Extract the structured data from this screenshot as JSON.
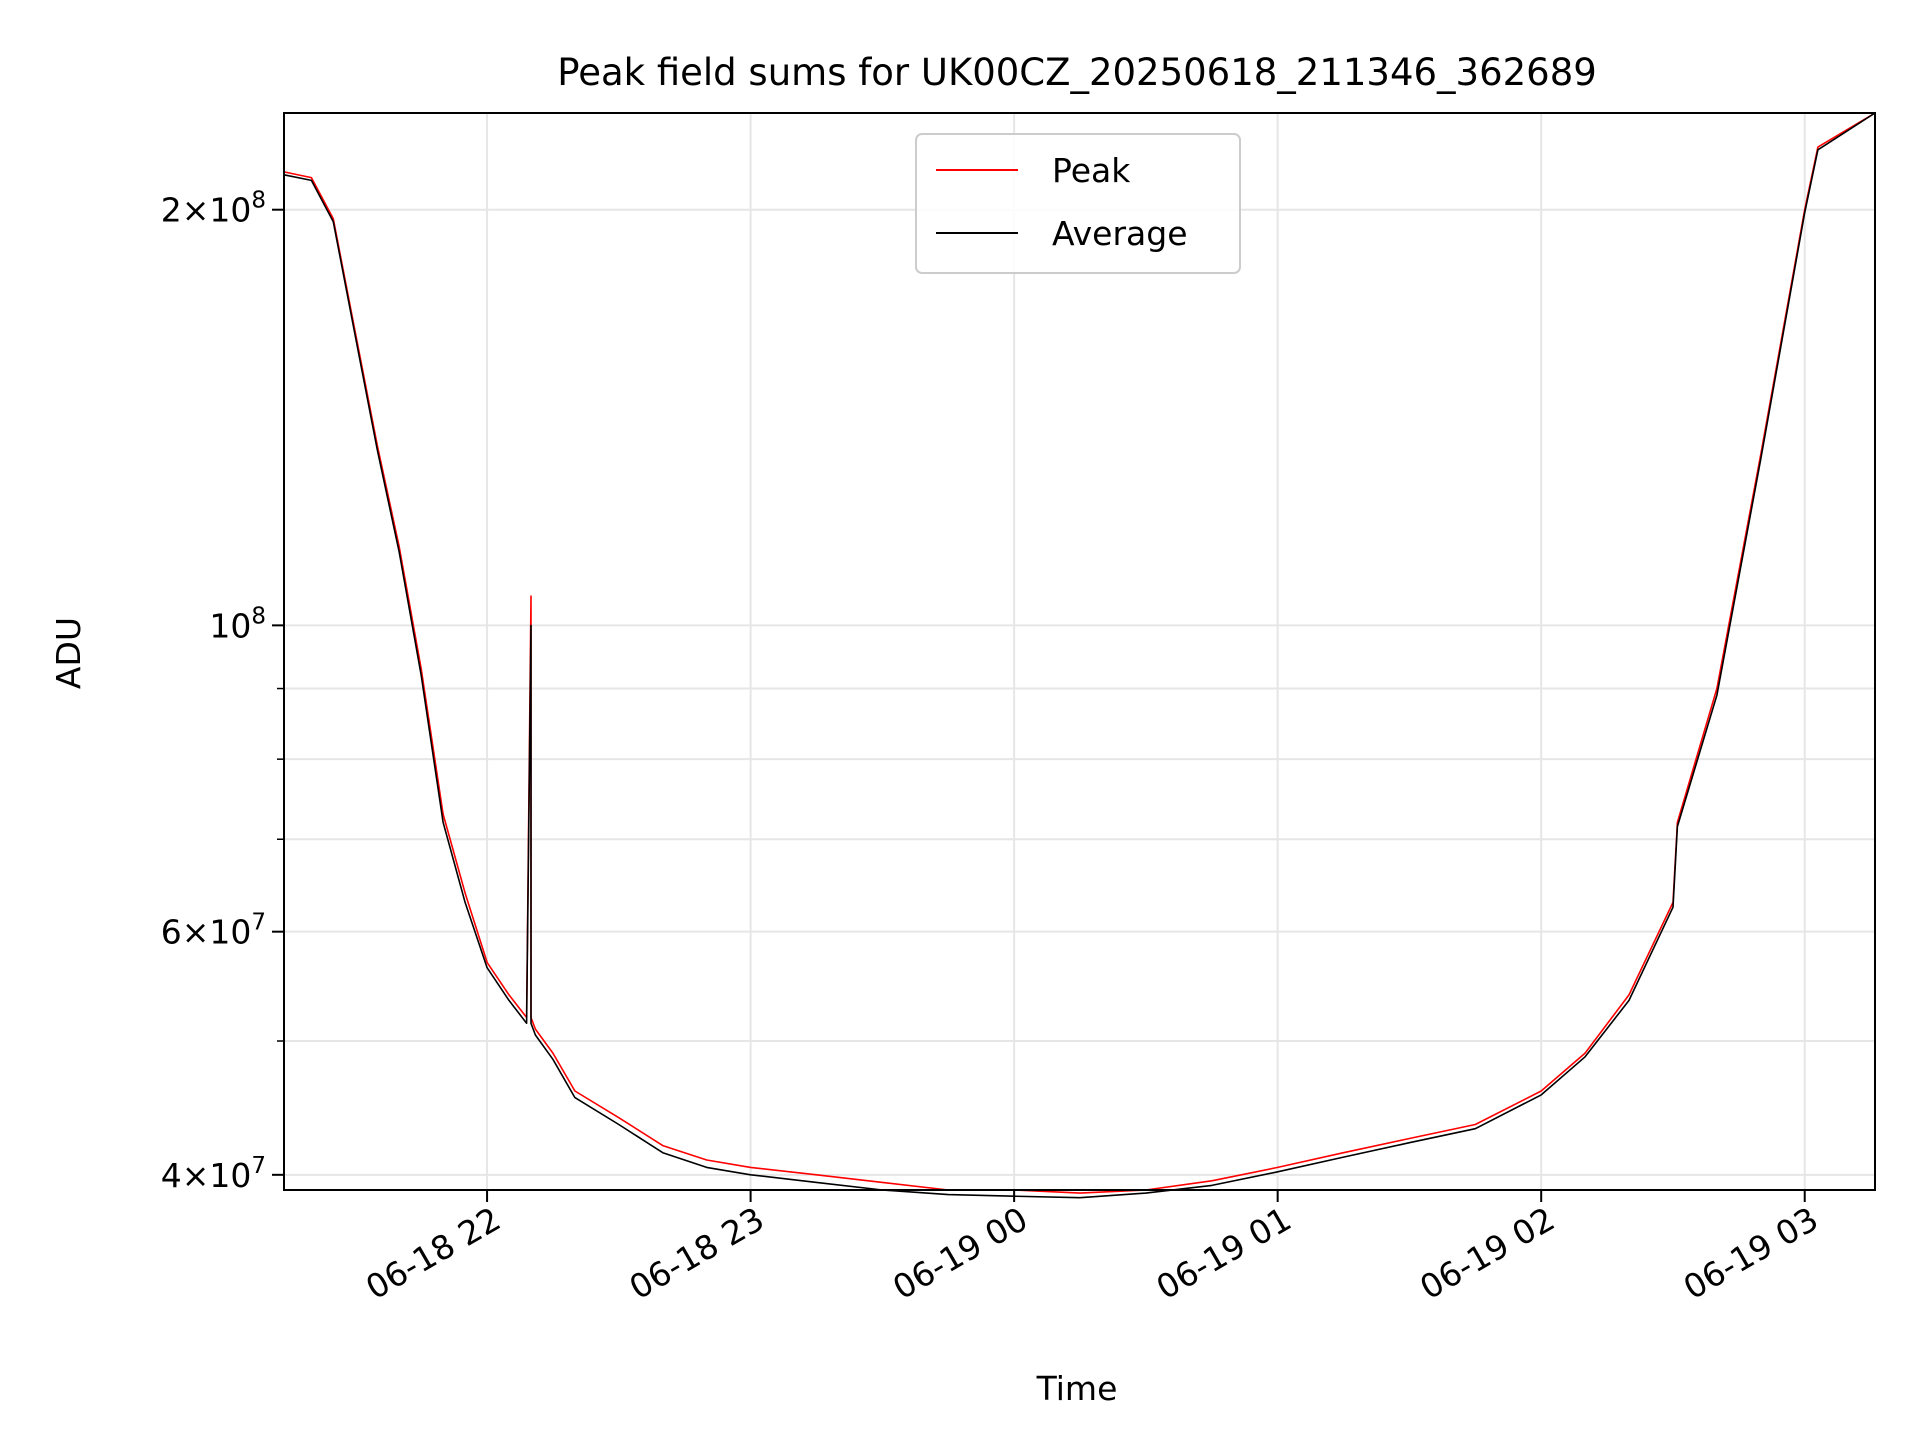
{
  "chart_data": {
    "type": "line",
    "title": "Peak field sums for UK00CZ_20250618_211346_362689",
    "xlabel": "Time",
    "ylabel": "ADU",
    "x_scale": "time",
    "y_scale": "log",
    "xlim": [
      "2025-06-18 21:13:46",
      "2025-06-19 03:16:00"
    ],
    "ylim": [
      39000000,
      235000000
    ],
    "grid": true,
    "legend_position": "top-center",
    "x_ticks": [
      {
        "label": "06-18 22",
        "value": "2025-06-18 22:00"
      },
      {
        "label": "06-18 23",
        "value": "2025-06-18 23:00"
      },
      {
        "label": "06-19 00",
        "value": "2025-06-19 00:00"
      },
      {
        "label": "06-19 01",
        "value": "2025-06-19 01:00"
      },
      {
        "label": "06-19 02",
        "value": "2025-06-19 02:00"
      },
      {
        "label": "06-19 03",
        "value": "2025-06-19 03:00"
      }
    ],
    "y_major_ticks": [
      {
        "value": 40000000,
        "mant": "4",
        "exp": "7"
      },
      {
        "value": 60000000,
        "mant": "6",
        "exp": "7"
      },
      {
        "value": 100000000,
        "mant": "",
        "exp": "8"
      },
      {
        "value": 200000000,
        "mant": "2",
        "exp": "8"
      }
    ],
    "y_minor_ticks": [
      50000000,
      70000000,
      80000000,
      90000000
    ],
    "series": [
      {
        "name": "Peak",
        "color": "#ff0000",
        "x": [
          "2025-06-18 21:13:46",
          "2025-06-18 21:20",
          "2025-06-18 21:25",
          "2025-06-18 21:30",
          "2025-06-18 21:35",
          "2025-06-18 21:40",
          "2025-06-18 21:45",
          "2025-06-18 21:50",
          "2025-06-18 21:55",
          "2025-06-18 22:00",
          "2025-06-18 22:05",
          "2025-06-18 22:09",
          "2025-06-18 22:10",
          "2025-06-18 22:10",
          "2025-06-18 22:11",
          "2025-06-18 22:15",
          "2025-06-18 22:20",
          "2025-06-18 22:30",
          "2025-06-18 22:40",
          "2025-06-18 22:50",
          "2025-06-18 23:00",
          "2025-06-18 23:15",
          "2025-06-18 23:30",
          "2025-06-18 23:45",
          "2025-06-19 00:00",
          "2025-06-19 00:15",
          "2025-06-19 00:30",
          "2025-06-19 00:45",
          "2025-06-19 01:00",
          "2025-06-19 01:15",
          "2025-06-19 01:30",
          "2025-06-19 01:45",
          "2025-06-19 02:00",
          "2025-06-19 02:10",
          "2025-06-19 02:20",
          "2025-06-19 02:30",
          "2025-06-19 02:31",
          "2025-06-19 02:40",
          "2025-06-19 02:50",
          "2025-06-19 03:00",
          "2025-06-19 03:03",
          "2025-06-19 03:16"
        ],
        "values": [
          213000000,
          211000000,
          197000000,
          163000000,
          135000000,
          114000000,
          93000000,
          73000000,
          64000000,
          57000000,
          54000000,
          52000000,
          105000000,
          52000000,
          51000000,
          49000000,
          46000000,
          44000000,
          42000000,
          41000000,
          40500000,
          40000000,
          39500000,
          39000000,
          39000000,
          38800000,
          39000000,
          39600000,
          40500000,
          41500000,
          42500000,
          43500000,
          46000000,
          49000000,
          54000000,
          63000000,
          72000000,
          90000000,
          133000000,
          200000000,
          222000000,
          235000000
        ]
      },
      {
        "name": "Average",
        "color": "#000000",
        "x": [
          "2025-06-18 21:13:46",
          "2025-06-18 21:20",
          "2025-06-18 21:25",
          "2025-06-18 21:30",
          "2025-06-18 21:35",
          "2025-06-18 21:40",
          "2025-06-18 21:45",
          "2025-06-18 21:50",
          "2025-06-18 21:55",
          "2025-06-18 22:00",
          "2025-06-18 22:05",
          "2025-06-18 22:09",
          "2025-06-18 22:10",
          "2025-06-18 22:10",
          "2025-06-18 22:11",
          "2025-06-18 22:15",
          "2025-06-18 22:20",
          "2025-06-18 22:30",
          "2025-06-18 22:40",
          "2025-06-18 22:50",
          "2025-06-18 23:00",
          "2025-06-18 23:15",
          "2025-06-18 23:30",
          "2025-06-18 23:45",
          "2025-06-19 00:00",
          "2025-06-19 00:15",
          "2025-06-19 00:30",
          "2025-06-19 00:45",
          "2025-06-19 01:00",
          "2025-06-19 01:15",
          "2025-06-19 01:30",
          "2025-06-19 01:45",
          "2025-06-19 02:00",
          "2025-06-19 02:10",
          "2025-06-19 02:20",
          "2025-06-19 02:30",
          "2025-06-19 02:31",
          "2025-06-19 02:40",
          "2025-06-19 02:50",
          "2025-06-19 03:00",
          "2025-06-19 03:03",
          "2025-06-19 03:16"
        ],
        "values": [
          212000000,
          210000000,
          196000000,
          162000000,
          134000000,
          113000000,
          92000000,
          72000000,
          63000000,
          56500000,
          53500000,
          51500000,
          100000000,
          51500000,
          50500000,
          48500000,
          45500000,
          43500000,
          41500000,
          40500000,
          40000000,
          39500000,
          39000000,
          38700000,
          38600000,
          38500000,
          38800000,
          39300000,
          40200000,
          41200000,
          42200000,
          43200000,
          45700000,
          48700000,
          53500000,
          62500000,
          71500000,
          89000000,
          132000000,
          199000000,
          221000000,
          235000000
        ]
      }
    ]
  }
}
